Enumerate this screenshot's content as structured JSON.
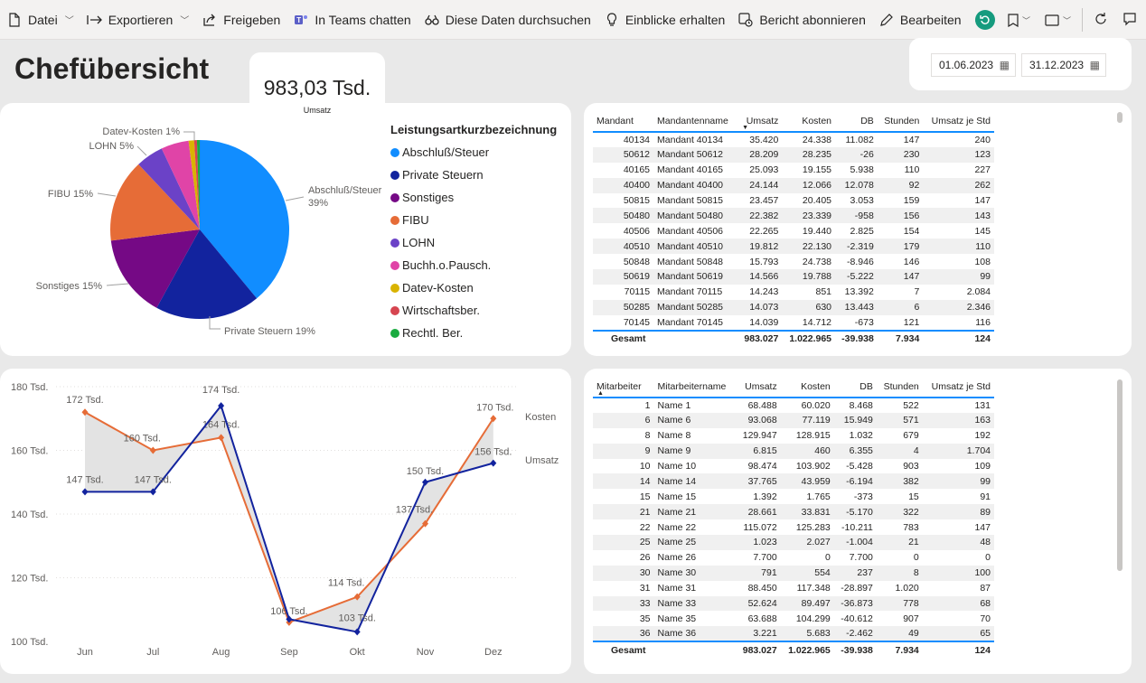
{
  "toolbar": {
    "items": [
      {
        "label": "Datei",
        "icon": "file-icon",
        "dropdown": true
      },
      {
        "label": "Exportieren",
        "icon": "export-icon",
        "dropdown": true
      },
      {
        "label": "Freigeben",
        "icon": "share-icon",
        "dropdown": false
      },
      {
        "label": "In Teams chatten",
        "icon": "teams-icon",
        "dropdown": false
      },
      {
        "label": "Diese Daten durchsuchen",
        "icon": "binoculars-icon",
        "dropdown": false
      },
      {
        "label": "Einblicke erhalten",
        "icon": "lightbulb-icon",
        "dropdown": false
      },
      {
        "label": "Bericht abonnieren",
        "icon": "subscribe-icon",
        "dropdown": false
      },
      {
        "label": "Bearbeiten",
        "icon": "pencil-icon",
        "dropdown": false
      }
    ],
    "more": "···",
    "accent": "#159b7e"
  },
  "page_title": "Chefübersicht",
  "kpi": {
    "value": "983,03 Tsd.",
    "label": "Umsatz"
  },
  "date_slicer": {
    "start": "01.06.2023",
    "end": "31.12.2023"
  },
  "chart_data": [
    {
      "type": "pie",
      "legend_title": "Leistungsartkurzbezeichnung",
      "slices": [
        {
          "name": "Abschluß/Steuer",
          "percent": 39,
          "color": "#118dff",
          "label": "Abschluß/Steuer 39%"
        },
        {
          "name": "Private Steuern",
          "percent": 19,
          "color": "#12239e",
          "label": "Private Steuern 19%"
        },
        {
          "name": "Sonstiges",
          "percent": 15,
          "color": "#750985",
          "label": "Sonstiges 15%"
        },
        {
          "name": "FIBU",
          "percent": 15,
          "color": "#e66c37",
          "label": "FIBU 15%"
        },
        {
          "name": "LOHN",
          "percent": 5,
          "color": "#6b42c7",
          "label": "LOHN 5%"
        },
        {
          "name": "Buchh.o.Pausch.",
          "percent": 5,
          "color": "#e044a7",
          "label": ""
        },
        {
          "name": "Datev-Kosten",
          "percent": 1,
          "color": "#d9b300",
          "label": "Datev-Kosten 1%"
        },
        {
          "name": "Wirtschaftsber.",
          "percent": 0.5,
          "color": "#d64550",
          "label": ""
        },
        {
          "name": "Rechtl. Ber.",
          "percent": 0.5,
          "color": "#1aab40",
          "label": ""
        }
      ]
    },
    {
      "type": "line",
      "categories": [
        "Jun",
        "Jul",
        "Aug",
        "Sep",
        "Okt",
        "Nov",
        "Dez"
      ],
      "ylim": [
        100,
        180
      ],
      "yticks": [
        "100 Tsd.",
        "120 Tsd.",
        "140 Tsd.",
        "160 Tsd.",
        "180 Tsd."
      ],
      "series": [
        {
          "name": "Kosten",
          "color": "#e66c37",
          "values": [
            172,
            160,
            164,
            106,
            114,
            137,
            170
          ],
          "labels": [
            "172 Tsd.",
            "160 Tsd.",
            "164 Tsd.",
            "106 Tsd.",
            "114 Tsd.",
            "137 Tsd.",
            "170 Tsd."
          ]
        },
        {
          "name": "Umsatz",
          "color": "#12239e",
          "values": [
            147,
            147,
            174,
            107,
            103,
            150,
            156
          ],
          "labels": [
            "147 Tsd.",
            "147 Tsd.",
            "174 Tsd.",
            "",
            "103 Tsd.",
            "150 Tsd.",
            "156 Tsd."
          ]
        }
      ]
    },
    {
      "type": "table",
      "columns": [
        "Mandant",
        "Mandantenname",
        "Umsatz",
        "Kosten",
        "DB",
        "Stunden",
        "Umsatz je Std"
      ],
      "rows": [
        [
          "40134",
          "Mandant 40134",
          "35.420",
          "24.338",
          "11.082",
          "147",
          "240"
        ],
        [
          "50612",
          "Mandant 50612",
          "28.209",
          "28.235",
          "-26",
          "230",
          "123"
        ],
        [
          "40165",
          "Mandant 40165",
          "25.093",
          "19.155",
          "5.938",
          "110",
          "227"
        ],
        [
          "40400",
          "Mandant 40400",
          "24.144",
          "12.066",
          "12.078",
          "92",
          "262"
        ],
        [
          "50815",
          "Mandant 50815",
          "23.457",
          "20.405",
          "3.053",
          "159",
          "147"
        ],
        [
          "50480",
          "Mandant 50480",
          "22.382",
          "23.339",
          "-958",
          "156",
          "143"
        ],
        [
          "40506",
          "Mandant 40506",
          "22.265",
          "19.440",
          "2.825",
          "154",
          "145"
        ],
        [
          "40510",
          "Mandant 40510",
          "19.812",
          "22.130",
          "-2.319",
          "179",
          "110"
        ],
        [
          "50848",
          "Mandant 50848",
          "15.793",
          "24.738",
          "-8.946",
          "146",
          "108"
        ],
        [
          "50619",
          "Mandant 50619",
          "14.566",
          "19.788",
          "-5.222",
          "147",
          "99"
        ],
        [
          "70115",
          "Mandant 70115",
          "14.243",
          "851",
          "13.392",
          "7",
          "2.084"
        ],
        [
          "50285",
          "Mandant 50285",
          "14.073",
          "630",
          "13.443",
          "6",
          "2.346"
        ],
        [
          "70145",
          "Mandant 70145",
          "14.039",
          "14.712",
          "-673",
          "121",
          "116"
        ]
      ],
      "total": [
        "Gesamt",
        "",
        "983.027",
        "1.022.965",
        "-39.938",
        "7.934",
        "124"
      ]
    },
    {
      "type": "table",
      "columns": [
        "Mitarbeiter",
        "Mitarbeitername",
        "Umsatz",
        "Kosten",
        "DB",
        "Stunden",
        "Umsatz je Std"
      ],
      "rows": [
        [
          "1",
          "Name 1",
          "68.488",
          "60.020",
          "8.468",
          "522",
          "131"
        ],
        [
          "6",
          "Name 6",
          "93.068",
          "77.119",
          "15.949",
          "571",
          "163"
        ],
        [
          "8",
          "Name 8",
          "129.947",
          "128.915",
          "1.032",
          "679",
          "192"
        ],
        [
          "9",
          "Name 9",
          "6.815",
          "460",
          "6.355",
          "4",
          "1.704"
        ],
        [
          "10",
          "Name 10",
          "98.474",
          "103.902",
          "-5.428",
          "903",
          "109"
        ],
        [
          "14",
          "Name 14",
          "37.765",
          "43.959",
          "-6.194",
          "382",
          "99"
        ],
        [
          "15",
          "Name 15",
          "1.392",
          "1.765",
          "-373",
          "15",
          "91"
        ],
        [
          "21",
          "Name 21",
          "28.661",
          "33.831",
          "-5.170",
          "322",
          "89"
        ],
        [
          "22",
          "Name 22",
          "115.072",
          "125.283",
          "-10.211",
          "783",
          "147"
        ],
        [
          "25",
          "Name 25",
          "1.023",
          "2.027",
          "-1.004",
          "21",
          "48"
        ],
        [
          "26",
          "Name 26",
          "7.700",
          "0",
          "7.700",
          "0",
          "0"
        ],
        [
          "30",
          "Name 30",
          "791",
          "554",
          "237",
          "8",
          "100"
        ],
        [
          "31",
          "Name 31",
          "88.450",
          "117.348",
          "-28.897",
          "1.020",
          "87"
        ],
        [
          "33",
          "Name 33",
          "52.624",
          "89.497",
          "-36.873",
          "778",
          "68"
        ],
        [
          "35",
          "Name 35",
          "63.688",
          "104.299",
          "-40.612",
          "907",
          "70"
        ],
        [
          "36",
          "Name 36",
          "3.221",
          "5.683",
          "-2.462",
          "49",
          "65"
        ]
      ],
      "total": [
        "Gesamt",
        "",
        "983.027",
        "1.022.965",
        "-39.938",
        "7.934",
        "124"
      ]
    }
  ]
}
